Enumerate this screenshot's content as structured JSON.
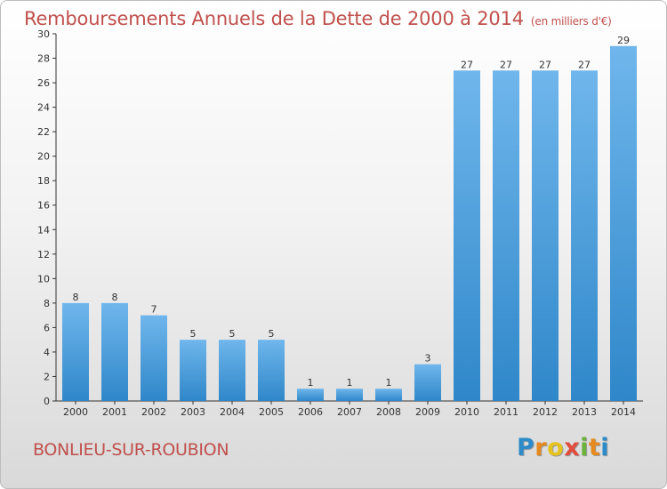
{
  "header": {
    "title": "Remboursements Annuels de la Dette de 2000 à 2014",
    "subtitle": "(en milliers d'€)"
  },
  "footer": {
    "town": "BONLIEU-SUR-ROUBION",
    "logo_text": "Proxiti"
  },
  "colors": {
    "title": "#c0504d",
    "bar_light": "#6fb6ec",
    "bar_dark": "#2f87c9",
    "axis": "#333333"
  },
  "chart_data": {
    "type": "bar",
    "categories": [
      "2000",
      "2001",
      "2002",
      "2003",
      "2004",
      "2005",
      "2006",
      "2007",
      "2008",
      "2009",
      "2010",
      "2011",
      "2012",
      "2013",
      "2014"
    ],
    "values": [
      8,
      8,
      7,
      5,
      5,
      5,
      1,
      1,
      1,
      3,
      27,
      27,
      27,
      27,
      29
    ],
    "title": "Remboursements Annuels de la Dette de 2000 à 2014",
    "ylabel": "",
    "xlabel": "",
    "ylim": [
      0,
      30
    ],
    "yticks": [
      0,
      2,
      4,
      6,
      8,
      10,
      12,
      14,
      16,
      18,
      20,
      22,
      24,
      26,
      28,
      30
    ],
    "grid": false,
    "data_labels": true
  }
}
